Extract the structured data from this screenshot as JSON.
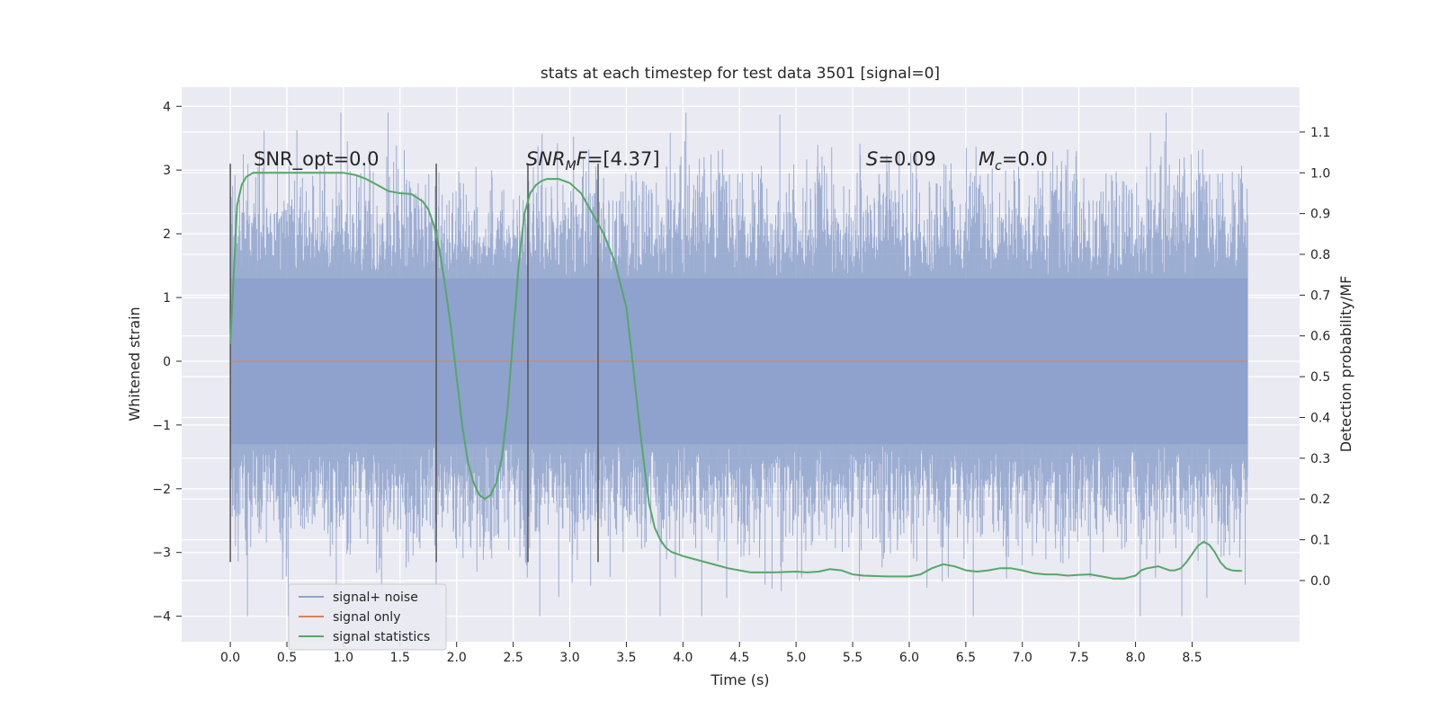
{
  "chart_data": {
    "type": "line",
    "title": "stats at each timestep for test data 3501 [signal=0]",
    "xlabel": "Time (s)",
    "ylabel": "Whitened strain",
    "y2label": "Detection probability/MF",
    "xlim": [
      -0.43,
      9.45
    ],
    "ylim": [
      -4.4,
      4.3
    ],
    "y2lim": [
      -0.15,
      1.21
    ],
    "x_ticks": [
      "0.0",
      "0.5",
      "1.0",
      "1.5",
      "2.0",
      "2.5",
      "3.0",
      "3.5",
      "4.0",
      "4.5",
      "5.0",
      "5.5",
      "6.0",
      "6.5",
      "7.0",
      "7.5",
      "8.0",
      "8.5"
    ],
    "y_ticks": [
      "4",
      "3",
      "2",
      "1",
      "0",
      "−1",
      "−2",
      "−3",
      "−4"
    ],
    "y2_ticks": [
      "1.1",
      "1.0",
      "0.9",
      "0.8",
      "0.7",
      "0.6",
      "0.5",
      "0.4",
      "0.3",
      "0.2",
      "0.1",
      "0.0"
    ],
    "grid": true,
    "legend_position": "bottom-left",
    "series": [
      {
        "name": "signal+ noise",
        "color": "#8ea2cd",
        "description_values": "dense noise trace, spikes mostly within about ±2.5 with peaks to about ±4",
        "x_range": [
          0.0,
          8.99
        ],
        "envelope": {
          "core": [
            -1.3,
            1.3
          ],
          "typical_peak": [
            -2.8,
            2.8
          ],
          "max_peak": [
            -4.0,
            3.9
          ]
        }
      },
      {
        "name": "signal only",
        "color": "#dd8452",
        "x": [
          0.0,
          8.99
        ],
        "y": [
          0.0,
          0.0
        ]
      },
      {
        "name": "signal statistics",
        "color": "#55a868",
        "axis": "right",
        "x": [
          0.0,
          0.03,
          0.06,
          0.1,
          0.14,
          0.2,
          0.3,
          0.5,
          0.8,
          1.0,
          1.1,
          1.2,
          1.3,
          1.4,
          1.5,
          1.6,
          1.7,
          1.75,
          1.8,
          1.85,
          1.9,
          1.95,
          2.0,
          2.05,
          2.1,
          2.15,
          2.2,
          2.25,
          2.3,
          2.35,
          2.4,
          2.45,
          2.5,
          2.55,
          2.6,
          2.65,
          2.7,
          2.75,
          2.8,
          2.9,
          3.0,
          3.1,
          3.2,
          3.3,
          3.4,
          3.5,
          3.55,
          3.6,
          3.65,
          3.7,
          3.75,
          3.8,
          3.85,
          3.9,
          4.0,
          4.2,
          4.4,
          4.6,
          4.8,
          5.0,
          5.1,
          5.2,
          5.3,
          5.4,
          5.5,
          5.6,
          5.8,
          6.0,
          6.1,
          6.2,
          6.3,
          6.4,
          6.5,
          6.6,
          6.7,
          6.8,
          6.9,
          7.0,
          7.1,
          7.2,
          7.3,
          7.4,
          7.5,
          7.6,
          7.7,
          7.8,
          7.9,
          8.0,
          8.05,
          8.1,
          8.2,
          8.3,
          8.35,
          8.4,
          8.45,
          8.5,
          8.55,
          8.6,
          8.65,
          8.7,
          8.75,
          8.8,
          8.85,
          8.9,
          8.94
        ],
        "y": [
          0.58,
          0.75,
          0.92,
          0.97,
          0.99,
          1.0,
          1.0,
          1.0,
          1.0,
          1.0,
          0.995,
          0.985,
          0.97,
          0.955,
          0.95,
          0.948,
          0.93,
          0.91,
          0.87,
          0.81,
          0.72,
          0.62,
          0.5,
          0.38,
          0.29,
          0.24,
          0.21,
          0.2,
          0.21,
          0.24,
          0.3,
          0.42,
          0.6,
          0.78,
          0.9,
          0.95,
          0.97,
          0.98,
          0.985,
          0.985,
          0.975,
          0.95,
          0.9,
          0.85,
          0.78,
          0.67,
          0.55,
          0.42,
          0.3,
          0.19,
          0.13,
          0.1,
          0.08,
          0.07,
          0.06,
          0.045,
          0.03,
          0.02,
          0.02,
          0.022,
          0.02,
          0.022,
          0.028,
          0.025,
          0.015,
          0.012,
          0.01,
          0.01,
          0.015,
          0.03,
          0.04,
          0.035,
          0.025,
          0.022,
          0.025,
          0.03,
          0.03,
          0.025,
          0.018,
          0.015,
          0.015,
          0.012,
          0.014,
          0.015,
          0.01,
          0.005,
          0.005,
          0.012,
          0.025,
          0.03,
          0.035,
          0.025,
          0.025,
          0.03,
          0.045,
          0.065,
          0.085,
          0.095,
          0.088,
          0.07,
          0.045,
          0.03,
          0.025,
          0.024,
          0.024
        ]
      }
    ],
    "vlines": [
      {
        "x": 0.0,
        "ylim": [
          -3.15,
          3.1
        ]
      },
      {
        "x": 1.82,
        "ylim": [
          -3.15,
          3.1
        ]
      },
      {
        "x": 2.63,
        "ylim": [
          -3.15,
          3.1
        ]
      },
      {
        "x": 3.25,
        "ylim": [
          -3.15,
          3.1
        ]
      }
    ],
    "annotations": [
      {
        "text": "SNR_opt=0.0",
        "x": 0.2,
        "y": 3.12,
        "italic": false
      },
      {
        "text_main": "SNR",
        "text_sub": "M",
        "text_rest_it": "F",
        "text_rest": "=[4.37]",
        "x": 2.6,
        "y": 3.12
      },
      {
        "text_it": "S",
        "text_rest": "=0.09",
        "x": 5.6,
        "y": 3.12
      },
      {
        "text_it": "M",
        "text_sub": "c",
        "text_rest": "=0.0",
        "x": 6.6,
        "y": 3.12
      }
    ],
    "colors": {
      "background": "#eaeaf2",
      "grid": "#ffffff",
      "vline": "#555555"
    }
  }
}
